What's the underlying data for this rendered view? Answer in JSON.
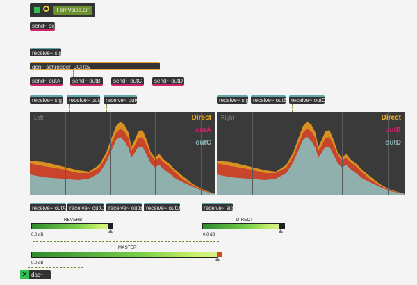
{
  "sfplay": {
    "filename": "FemVoice.aif"
  },
  "objects": {
    "send_sig": "send~ sig",
    "receive_sig": "receive~ sig",
    "gen": "gen~ schroeder_JCRev",
    "send_outA": "send~ outA",
    "send_outB": "send~ outB",
    "send_outC": "send~ outC",
    "send_outD": "send~ outD",
    "receive_outA": "receive~ outA",
    "receive_outB": "receive~ outB",
    "receive_outC": "receive~ outC",
    "receive_outD": "receive~ outD",
    "dac": "dac~"
  },
  "scopes": {
    "left": {
      "corner": "Left",
      "legend": [
        "Direct",
        "outA",
        "outC"
      ]
    },
    "right": {
      "corner": "Right",
      "legend": [
        "Direct",
        "outB",
        "outD"
      ]
    }
  },
  "colors": {
    "direct": "#e8a020",
    "outA": "#d2236a",
    "outB": "#d2236a",
    "outC": "#7fb5b5",
    "outD": "#7fb5b5",
    "meter_green": "#7bd04a",
    "cord": "#6b8f2e"
  },
  "meters": {
    "reverb": {
      "label": "REVERB",
      "gain": "0.0 dB"
    },
    "direct": {
      "label": "DIRECT",
      "gain": "0.0 dB"
    },
    "master": {
      "label": "MASTER",
      "gain": "0.0 dB"
    }
  },
  "icons": {
    "play": "play-toggle-icon",
    "loop": "loop-icon",
    "dac": "x-toggle-icon"
  }
}
